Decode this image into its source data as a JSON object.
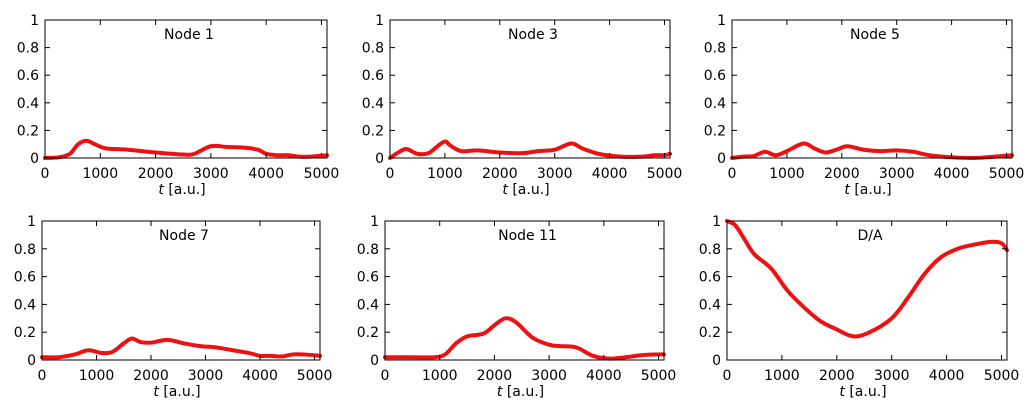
{
  "chart_data": [
    {
      "type": "line",
      "title": "Node 1",
      "xlabel_italic": "t",
      "xlabel_rest": " [a.u.]",
      "xlim": [
        0,
        5100
      ],
      "ylim": [
        0,
        1
      ],
      "xticks": [
        0,
        1000,
        2000,
        3000,
        4000,
        5000
      ],
      "yticks": [
        0,
        0.2,
        0.4,
        0.6,
        0.8,
        1
      ],
      "ytick_labels": [
        "0",
        "0.2",
        "0.4",
        "0.6",
        "0.8",
        "1"
      ],
      "series": [
        {
          "x": [
            0,
            250,
            450,
            600,
            750,
            900,
            1100,
            1500,
            2000,
            2500,
            2700,
            3000,
            3300,
            3600,
            3850,
            4000,
            4200,
            4400,
            4600,
            4800,
            5100
          ],
          "y": [
            0,
            0.005,
            0.03,
            0.1,
            0.125,
            0.1,
            0.07,
            0.06,
            0.04,
            0.025,
            0.03,
            0.085,
            0.08,
            0.075,
            0.06,
            0.03,
            0.02,
            0.02,
            0.01,
            0.01,
            0.02
          ]
        }
      ]
    },
    {
      "type": "line",
      "title": "Node 3",
      "xlabel_italic": "t",
      "xlabel_rest": " [a.u.]",
      "xlim": [
        0,
        5100
      ],
      "ylim": [
        0,
        1
      ],
      "xticks": [
        0,
        1000,
        2000,
        3000,
        4000,
        5000
      ],
      "yticks": [
        0,
        0.2,
        0.4,
        0.6,
        0.8,
        1
      ],
      "ytick_labels": [
        "0",
        "0.2",
        "0.4",
        "0.6",
        "0.8",
        "1"
      ],
      "series": [
        {
          "x": [
            0,
            150,
            300,
            500,
            700,
            850,
            1000,
            1100,
            1300,
            1600,
            2000,
            2400,
            2700,
            3000,
            3300,
            3500,
            3800,
            4200,
            4600,
            4800,
            5000,
            5100
          ],
          "y": [
            0,
            0.04,
            0.065,
            0.03,
            0.035,
            0.08,
            0.12,
            0.09,
            0.05,
            0.055,
            0.04,
            0.035,
            0.05,
            0.06,
            0.105,
            0.07,
            0.03,
            0.01,
            0.01,
            0.02,
            0.02,
            0.03
          ]
        }
      ]
    },
    {
      "type": "line",
      "title": "Node 5",
      "xlabel_italic": "t",
      "xlabel_rest": " [a.u.]",
      "xlim": [
        0,
        5100
      ],
      "ylim": [
        0,
        1
      ],
      "xticks": [
        0,
        1000,
        2000,
        3000,
        4000,
        5000
      ],
      "yticks": [
        0,
        0.2,
        0.4,
        0.6,
        0.8,
        1
      ],
      "ytick_labels": [
        "0",
        "0.2",
        "0.4",
        "0.6",
        "0.8",
        "1"
      ],
      "series": [
        {
          "x": [
            0,
            200,
            400,
            600,
            800,
            1000,
            1300,
            1500,
            1700,
            1900,
            2100,
            2400,
            2700,
            3000,
            3300,
            3600,
            4000,
            4400,
            4800,
            5100
          ],
          "y": [
            0,
            0.01,
            0.015,
            0.045,
            0.02,
            0.05,
            0.105,
            0.07,
            0.04,
            0.06,
            0.085,
            0.06,
            0.05,
            0.055,
            0.045,
            0.02,
            0.005,
            0.0,
            0.01,
            0.02
          ]
        }
      ]
    },
    {
      "type": "line",
      "title": "Node 7",
      "xlabel_italic": "t",
      "xlabel_rest": " [a.u.]",
      "xlim": [
        0,
        5100
      ],
      "ylim": [
        0,
        1
      ],
      "xticks": [
        0,
        1000,
        2000,
        3000,
        4000,
        5000
      ],
      "yticks": [
        0,
        0.2,
        0.4,
        0.6,
        0.8,
        1
      ],
      "ytick_labels": [
        "0",
        "0.2",
        "0.4",
        "0.6",
        "0.8",
        "1"
      ],
      "series": [
        {
          "x": [
            0,
            300,
            600,
            850,
            1100,
            1300,
            1500,
            1650,
            1800,
            2000,
            2300,
            2600,
            2900,
            3200,
            3500,
            3800,
            4000,
            4200,
            4400,
            4600,
            4800,
            5100
          ],
          "y": [
            0.02,
            0.02,
            0.04,
            0.07,
            0.05,
            0.06,
            0.12,
            0.155,
            0.13,
            0.125,
            0.145,
            0.12,
            0.1,
            0.09,
            0.07,
            0.05,
            0.03,
            0.03,
            0.025,
            0.04,
            0.04,
            0.03
          ]
        }
      ]
    },
    {
      "type": "line",
      "title": "Node 11",
      "xlabel_italic": "t",
      "xlabel_rest": " [a.u.]",
      "xlim": [
        0,
        5100
      ],
      "ylim": [
        0,
        1
      ],
      "xticks": [
        0,
        1000,
        2000,
        3000,
        4000,
        5000
      ],
      "yticks": [
        0,
        0.2,
        0.4,
        0.6,
        0.8,
        1
      ],
      "ytick_labels": [
        "0",
        "0.2",
        "0.4",
        "0.6",
        "0.8",
        "1"
      ],
      "series": [
        {
          "x": [
            0,
            500,
            900,
            1100,
            1300,
            1500,
            1800,
            2000,
            2200,
            2400,
            2700,
            3000,
            3200,
            3500,
            3800,
            4100,
            4400,
            4700,
            5000,
            5100
          ],
          "y": [
            0.02,
            0.02,
            0.02,
            0.04,
            0.12,
            0.17,
            0.19,
            0.25,
            0.3,
            0.27,
            0.16,
            0.11,
            0.1,
            0.09,
            0.03,
            0.01,
            0.02,
            0.035,
            0.04,
            0.04
          ]
        }
      ]
    },
    {
      "type": "line",
      "title": "D/A",
      "xlabel_italic": "t",
      "xlabel_rest": " [a.u.]",
      "xlim": [
        0,
        5100
      ],
      "ylim": [
        0,
        1
      ],
      "xticks": [
        0,
        1000,
        2000,
        3000,
        4000,
        5000
      ],
      "yticks": [
        0,
        0.2,
        0.4,
        0.6,
        0.8,
        1
      ],
      "ytick_labels": [
        "0",
        "0.2",
        "0.4",
        "0.6",
        "0.8",
        "1"
      ],
      "series": [
        {
          "x": [
            0,
            150,
            300,
            500,
            800,
            1100,
            1400,
            1700,
            2000,
            2300,
            2600,
            3000,
            3300,
            3600,
            3900,
            4200,
            4500,
            4800,
            5000,
            5100
          ],
          "y": [
            1,
            0.97,
            0.88,
            0.76,
            0.66,
            0.5,
            0.38,
            0.28,
            0.22,
            0.17,
            0.2,
            0.3,
            0.45,
            0.62,
            0.74,
            0.8,
            0.83,
            0.85,
            0.84,
            0.79
          ]
        }
      ]
    }
  ],
  "colors": {
    "line": "#ee1111",
    "axes": "#000000"
  }
}
